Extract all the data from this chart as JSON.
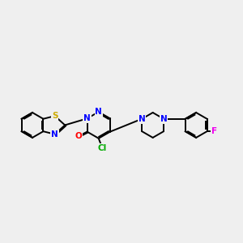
{
  "background_color": "#efefef",
  "bond_color": "#000000",
  "atom_colors": {
    "S": "#ccaa00",
    "N": "#0000ff",
    "O": "#ff0000",
    "Cl": "#00aa00",
    "F": "#ee00ee",
    "C": "#000000"
  },
  "figsize": [
    3.0,
    3.0
  ],
  "dpi": 100
}
